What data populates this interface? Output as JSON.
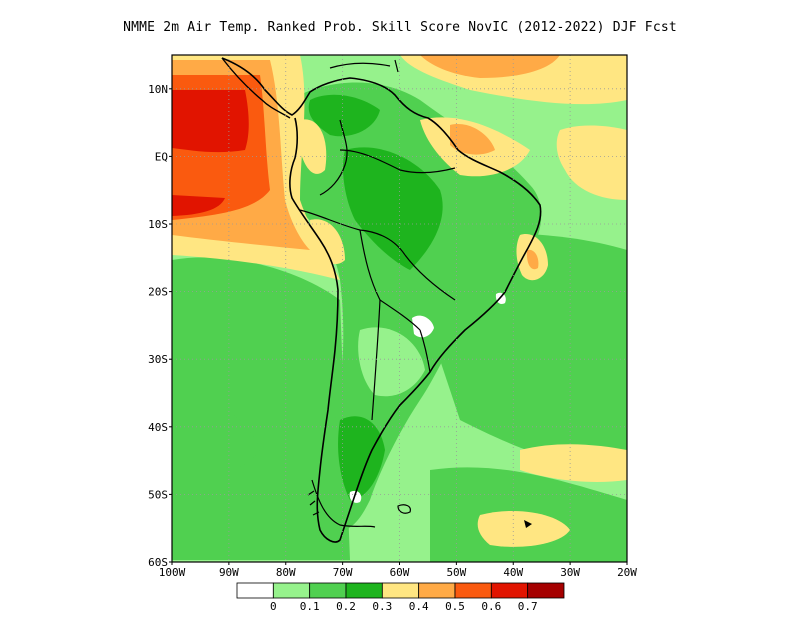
{
  "title": "NMME  2m Air Temp. Ranked Prob. Skill Score NovIC (2012-2022) DJF Fcst",
  "map": {
    "lat_labels": [
      "10N",
      "EQ",
      "10S",
      "20S",
      "30S",
      "40S",
      "50S",
      "60S"
    ],
    "lon_labels": [
      "100W",
      "90W",
      "80W",
      "70W",
      "60W",
      "50W",
      "40W",
      "30W",
      "20W"
    ],
    "lon_range": [
      -100,
      -20
    ],
    "lat_range": [
      -60,
      15
    ],
    "gridlines": "dotted"
  },
  "colorbar": {
    "labels": [
      "0",
      "0.1",
      "0.2",
      "0.3",
      "0.4",
      "0.5",
      "0.6",
      "0.7"
    ],
    "colors": [
      "#ffffff",
      "#96f28c",
      "#50d050",
      "#1eb41e",
      "#ffe682",
      "#ffaa46",
      "#fa5a0f",
      "#e11400",
      "#a50000"
    ]
  }
}
